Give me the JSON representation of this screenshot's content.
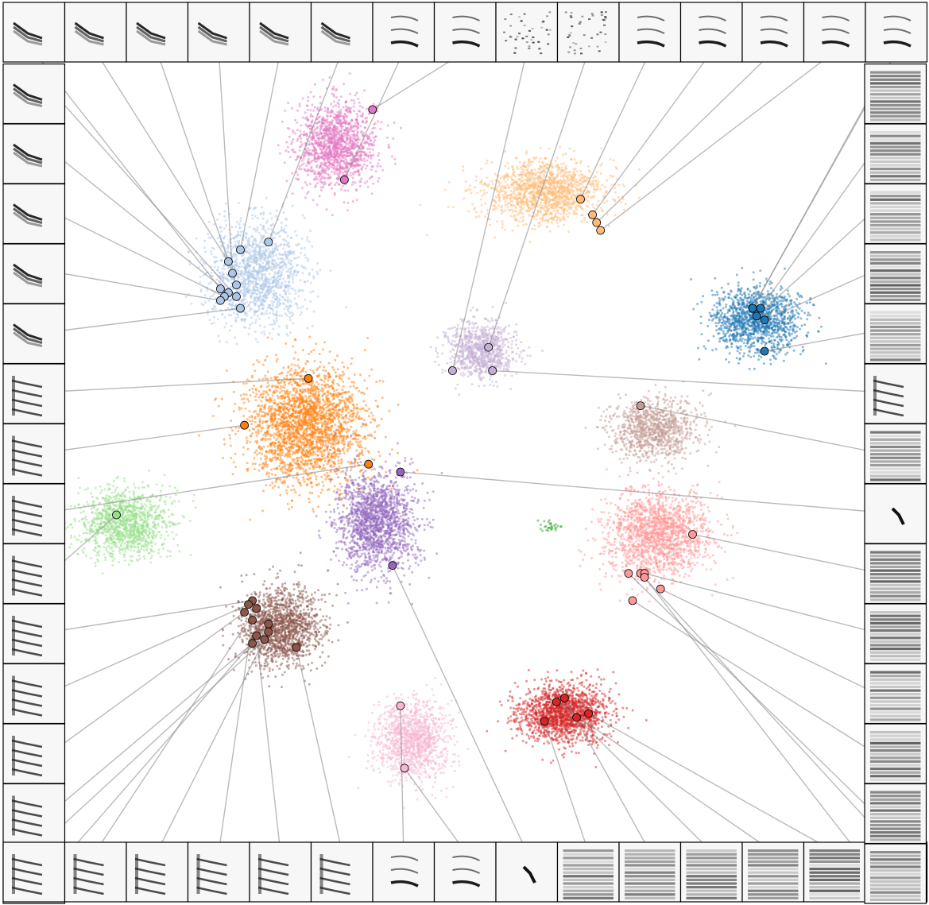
{
  "chart_data": {
    "type": "scatter",
    "title": "",
    "xlabel": "",
    "ylabel": "",
    "xlim": [
      -10,
      10
    ],
    "ylim": [
      -10,
      10
    ],
    "grid": false,
    "legend": "none",
    "clusters": [
      {
        "color": "#e377c2",
        "center": [
          -3.2,
          7.9
        ],
        "spread": [
          1.0,
          1.1
        ],
        "count": 1400
      },
      {
        "color": "#ffbb78",
        "center": [
          2.0,
          6.7
        ],
        "spread": [
          1.5,
          0.8
        ],
        "count": 1400
      },
      {
        "color": "#aec7e8",
        "center": [
          -5.2,
          4.6
        ],
        "spread": [
          1.2,
          1.3
        ],
        "count": 1500
      },
      {
        "color": "#1f77b4",
        "center": [
          7.3,
          3.4
        ],
        "spread": [
          1.1,
          0.85
        ],
        "count": 1300
      },
      {
        "color": "#c5b0d5",
        "center": [
          0.4,
          2.6
        ],
        "spread": [
          0.85,
          0.7
        ],
        "count": 900
      },
      {
        "color": "#ff7f0e",
        "center": [
          -4.0,
          0.7
        ],
        "spread": [
          1.5,
          1.5
        ],
        "count": 2400
      },
      {
        "color": "#c49c94",
        "center": [
          4.7,
          0.6
        ],
        "spread": [
          1.1,
          0.8
        ],
        "count": 1000
      },
      {
        "color": "#9467bd",
        "center": [
          -2.2,
          -1.8
        ],
        "spread": [
          1.0,
          1.3
        ],
        "count": 1700
      },
      {
        "color": "#98df8a",
        "center": [
          -8.5,
          -1.8
        ],
        "spread": [
          1.1,
          0.85
        ],
        "count": 1200
      },
      {
        "color": "#ff9896",
        "center": [
          4.8,
          -2.1
        ],
        "spread": [
          1.3,
          1.1
        ],
        "count": 1700
      },
      {
        "color": "#2ca02c",
        "center": [
          2.1,
          -1.9
        ],
        "spread": [
          0.25,
          0.15
        ],
        "count": 30
      },
      {
        "color": "#8c564b",
        "center": [
          -4.6,
          -4.5
        ],
        "spread": [
          1.0,
          1.0
        ],
        "count": 1500
      },
      {
        "color": "#f7b6d2",
        "center": [
          -1.3,
          -7.4
        ],
        "spread": [
          0.9,
          1.0
        ],
        "count": 1200
      },
      {
        "color": "#d62728",
        "center": [
          2.5,
          -6.7
        ],
        "spread": [
          1.1,
          0.75
        ],
        "count": 1600
      }
    ],
    "samples": [
      {
        "tile": "top",
        "index": 0,
        "style": "bird-call",
        "color": "#aec7e8",
        "point": [
          -6.1,
          4.2
        ]
      },
      {
        "tile": "top",
        "index": 1,
        "style": "bird-call",
        "color": "#aec7e8",
        "point": [
          -5.9,
          4.9
        ]
      },
      {
        "tile": "top",
        "index": 2,
        "style": "bird-call",
        "color": "#aec7e8",
        "point": [
          -5.7,
          4.3
        ]
      },
      {
        "tile": "top",
        "index": 3,
        "style": "bird-call",
        "color": "#aec7e8",
        "point": [
          -5.8,
          4.6
        ]
      },
      {
        "tile": "top",
        "index": 4,
        "style": "bird-call",
        "color": "#aec7e8",
        "point": [
          -5.6,
          5.2
        ]
      },
      {
        "tile": "top",
        "index": 5,
        "style": "bird-call",
        "color": "#aec7e8",
        "point": [
          -4.9,
          5.4
        ]
      },
      {
        "tile": "top",
        "index": 6,
        "style": "harmonic",
        "color": "#e377c2",
        "point": [
          -3.0,
          7.0
        ]
      },
      {
        "tile": "top",
        "index": 7,
        "style": "harmonic",
        "color": "#e377c2",
        "point": [
          -2.3,
          8.8
        ]
      },
      {
        "tile": "top",
        "index": 8,
        "style": "scatter-tile",
        "color": "#c5b0d5",
        "point": [
          -0.3,
          2.1
        ]
      },
      {
        "tile": "top",
        "index": 9,
        "style": "scatter-tile",
        "color": "#c5b0d5",
        "point": [
          0.6,
          2.7
        ]
      },
      {
        "tile": "top",
        "index": 10,
        "style": "harmonic",
        "color": "#ffbb78",
        "point": [
          2.9,
          6.5
        ]
      },
      {
        "tile": "top",
        "index": 11,
        "style": "harmonic",
        "color": "#ffbb78",
        "point": [
          3.2,
          6.1
        ]
      },
      {
        "tile": "top",
        "index": 12,
        "style": "harmonic",
        "color": "#ffbb78",
        "point": [
          3.3,
          5.9
        ]
      },
      {
        "tile": "top",
        "index": 13,
        "style": "harmonic",
        "color": "#ffbb78",
        "point": [
          3.4,
          5.7
        ]
      },
      {
        "tile": "top",
        "index": 14,
        "style": "harmonic",
        "color": "#1f77b4",
        "point": [
          7.2,
          3.7
        ]
      },
      {
        "tile": "left",
        "index": 0,
        "style": "bird-call",
        "color": "#aec7e8",
        "point": [
          -5.7,
          4.0
        ]
      },
      {
        "tile": "left",
        "index": 1,
        "style": "bird-call",
        "color": "#aec7e8",
        "point": [
          -5.9,
          4.1
        ]
      },
      {
        "tile": "left",
        "index": 2,
        "style": "bird-call",
        "color": "#aec7e8",
        "point": [
          -6.0,
          4.0
        ]
      },
      {
        "tile": "left",
        "index": 3,
        "style": "bird-call",
        "color": "#aec7e8",
        "point": [
          -6.1,
          3.9
        ]
      },
      {
        "tile": "left",
        "index": 4,
        "style": "bird-call",
        "color": "#aec7e8",
        "point": [
          -5.6,
          3.7
        ]
      },
      {
        "tile": "left",
        "index": 5,
        "style": "stacked",
        "color": "#ff7f0e",
        "point": [
          -3.9,
          1.9
        ]
      },
      {
        "tile": "left",
        "index": 6,
        "style": "stacked",
        "color": "#ff7f0e",
        "point": [
          -5.5,
          0.7
        ]
      },
      {
        "tile": "left",
        "index": 7,
        "style": "stacked",
        "color": "#ff7f0e",
        "point": [
          -2.4,
          -0.3
        ]
      },
      {
        "tile": "left",
        "index": 8,
        "style": "stacked",
        "color": "#98df8a",
        "point": [
          -8.7,
          -1.6
        ]
      },
      {
        "tile": "left",
        "index": 9,
        "style": "stacked",
        "color": "#8c564b",
        "point": [
          -5.3,
          -3.8
        ]
      },
      {
        "tile": "left",
        "index": 10,
        "style": "stacked",
        "color": "#8c564b",
        "point": [
          -5.4,
          -3.9
        ]
      },
      {
        "tile": "left",
        "index": 11,
        "style": "stacked",
        "color": "#8c564b",
        "point": [
          -5.5,
          -4.1
        ]
      },
      {
        "tile": "left",
        "index": 12,
        "style": "stacked",
        "color": "#8c564b",
        "point": [
          -5.3,
          -4.9
        ]
      },
      {
        "tile": "left",
        "index": 13,
        "style": "stacked",
        "color": "#8c564b",
        "point": [
          -4.9,
          -4.4
        ]
      },
      {
        "tile": "bottom",
        "index": 0,
        "style": "stacked",
        "color": "#8c564b",
        "point": [
          -5.0,
          -4.8
        ]
      },
      {
        "tile": "bottom",
        "index": 1,
        "style": "stacked",
        "color": "#8c564b",
        "point": [
          -5.2,
          -4.0
        ]
      },
      {
        "tile": "bottom",
        "index": 2,
        "style": "stacked",
        "color": "#8c564b",
        "point": [
          -4.9,
          -4.6
        ]
      },
      {
        "tile": "bottom",
        "index": 3,
        "style": "stacked",
        "color": "#8c564b",
        "point": [
          -5.3,
          -4.3
        ]
      },
      {
        "tile": "bottom",
        "index": 4,
        "style": "stacked",
        "color": "#8c564b",
        "point": [
          -5.2,
          -4.7
        ]
      },
      {
        "tile": "bottom",
        "index": 5,
        "style": "stacked",
        "color": "#8c564b",
        "point": [
          -4.2,
          -5.0
        ]
      },
      {
        "tile": "bottom",
        "index": 6,
        "style": "harmonic",
        "color": "#f7b6d2",
        "point": [
          -1.6,
          -6.5
        ]
      },
      {
        "tile": "bottom",
        "index": 7,
        "style": "harmonic",
        "color": "#f7b6d2",
        "point": [
          -1.5,
          -8.1
        ]
      },
      {
        "tile": "bottom",
        "index": 8,
        "style": "sparse",
        "color": "#9467bd",
        "point": [
          -1.8,
          -2.9
        ]
      },
      {
        "tile": "bottom",
        "index": 9,
        "style": "dense",
        "color": "#d62728",
        "point": [
          2.0,
          -6.9
        ]
      },
      {
        "tile": "bottom",
        "index": 10,
        "style": "dense",
        "color": "#d62728",
        "point": [
          2.5,
          -6.3
        ]
      },
      {
        "tile": "bottom",
        "index": 11,
        "style": "dense",
        "color": "#d62728",
        "point": [
          2.8,
          -6.8
        ]
      },
      {
        "tile": "bottom",
        "index": 12,
        "style": "dense",
        "color": "#d62728",
        "point": [
          2.3,
          -6.4
        ]
      },
      {
        "tile": "bottom",
        "index": 13,
        "style": "dense",
        "color": "#d62728",
        "point": [
          3.1,
          -6.7
        ]
      },
      {
        "tile": "bottom",
        "index": 14,
        "style": "dense",
        "color": "#ff9896",
        "point": [
          4.4,
          -3.1
        ]
      },
      {
        "tile": "right",
        "index": 0,
        "style": "dense",
        "color": "#1f77b4",
        "point": [
          7.2,
          3.7
        ]
      },
      {
        "tile": "right",
        "index": 1,
        "style": "dense",
        "color": "#1f77b4",
        "point": [
          7.4,
          3.7
        ]
      },
      {
        "tile": "right",
        "index": 2,
        "style": "dense",
        "color": "#1f77b4",
        "point": [
          7.3,
          3.5
        ]
      },
      {
        "tile": "right",
        "index": 3,
        "style": "dense",
        "color": "#1f77b4",
        "point": [
          7.5,
          3.4
        ]
      },
      {
        "tile": "right",
        "index": 4,
        "style": "dense",
        "color": "#1f77b4",
        "point": [
          7.5,
          2.6
        ]
      },
      {
        "tile": "right",
        "index": 5,
        "style": "stacked",
        "color": "#c5b0d5",
        "point": [
          0.7,
          2.1
        ]
      },
      {
        "tile": "right",
        "index": 6,
        "style": "dense",
        "color": "#c49c94",
        "point": [
          4.4,
          1.2
        ]
      },
      {
        "tile": "right",
        "index": 7,
        "style": "sparse",
        "color": "#9467bd",
        "point": [
          -1.6,
          -0.5
        ]
      },
      {
        "tile": "right",
        "index": 8,
        "style": "dense",
        "color": "#ff9896",
        "point": [
          5.7,
          -2.1
        ]
      },
      {
        "tile": "right",
        "index": 9,
        "style": "dense",
        "color": "#ff9896",
        "point": [
          4.5,
          -3.1
        ]
      },
      {
        "tile": "right",
        "index": 10,
        "style": "dense",
        "color": "#ff9896",
        "point": [
          4.9,
          -3.5
        ]
      },
      {
        "tile": "right",
        "index": 11,
        "style": "dense",
        "color": "#ff9896",
        "point": [
          4.2,
          -3.8
        ]
      },
      {
        "tile": "right",
        "index": 12,
        "style": "dense",
        "color": "#ff9896",
        "point": [
          4.1,
          -3.1
        ]
      },
      {
        "tile": "right",
        "index": 13,
        "style": "dense",
        "color": "#ff9896",
        "point": [
          4.5,
          -3.2
        ]
      }
    ]
  }
}
